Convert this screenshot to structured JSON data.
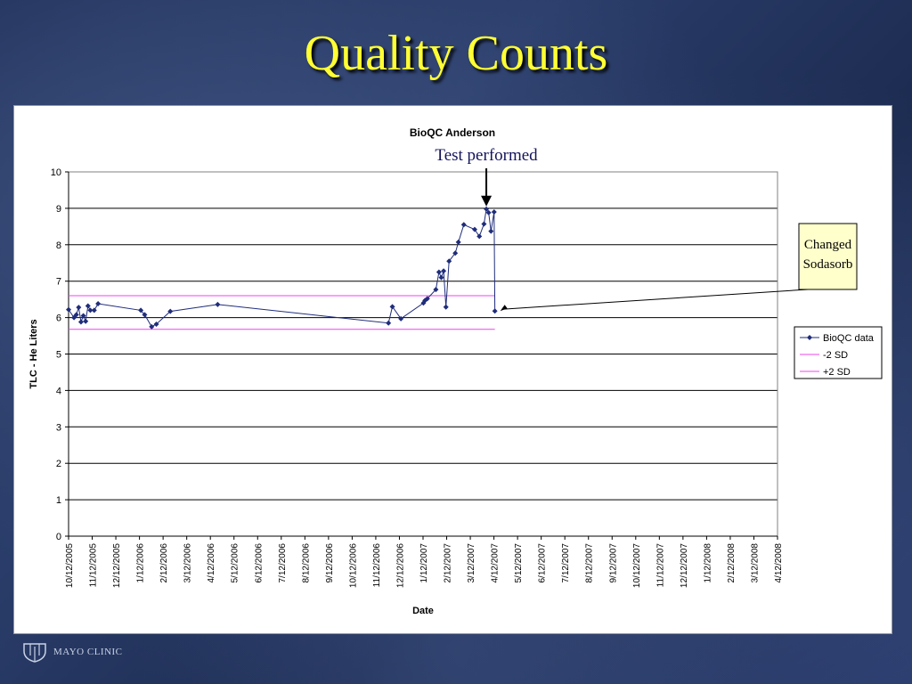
{
  "slide": {
    "title": "Quality Counts",
    "logo_text": "MAYO CLINIC"
  },
  "chart_data": {
    "type": "line",
    "title": "BioQC Anderson",
    "xlabel": "Date",
    "ylabel": "TLC - He Liters",
    "ylim": [
      0,
      10
    ],
    "yticks": [
      0,
      1,
      2,
      3,
      4,
      5,
      6,
      7,
      8,
      9,
      10
    ],
    "x_tick_labels": [
      "10/12/2005",
      "11/12/2005",
      "12/12/2005",
      "1/12/2006",
      "2/12/2006",
      "3/12/2006",
      "4/12/2006",
      "5/12/2006",
      "6/12/2006",
      "7/12/2006",
      "8/12/2006",
      "9/12/2006",
      "10/12/2006",
      "11/12/2006",
      "12/12/2006",
      "1/12/2007",
      "2/12/2007",
      "3/12/2007",
      "4/12/2007",
      "5/12/2007",
      "6/12/2007",
      "7/12/2007",
      "8/12/2007",
      "9/12/2007",
      "10/12/2007",
      "11/12/2007",
      "12/12/2007",
      "1/12/2008",
      "2/12/2008",
      "3/12/2008",
      "4/12/2008"
    ],
    "grid": true,
    "legend_position": "right",
    "series": [
      {
        "name": "BioQC data",
        "color": "#1f2d7a",
        "marker": "diamond",
        "points": [
          [
            "2005-10-12",
            6.22
          ],
          [
            "2005-10-19",
            6.0
          ],
          [
            "2005-10-22",
            6.08
          ],
          [
            "2005-10-25",
            6.28
          ],
          [
            "2005-10-28",
            5.88
          ],
          [
            "2005-10-31",
            6.05
          ],
          [
            "2005-11-03",
            5.9
          ],
          [
            "2005-11-06",
            6.32
          ],
          [
            "2005-11-09",
            6.2
          ],
          [
            "2005-11-14",
            6.2
          ],
          [
            "2005-11-19",
            6.38
          ],
          [
            "2006-01-13",
            6.2
          ],
          [
            "2006-01-18",
            6.08
          ],
          [
            "2006-01-27",
            5.75
          ],
          [
            "2006-02-02",
            5.82
          ],
          [
            "2006-02-20",
            6.17
          ],
          [
            "2006-04-22",
            6.36
          ],
          [
            "2006-11-28",
            5.85
          ],
          [
            "2006-12-03",
            6.3
          ],
          [
            "2006-12-14",
            5.97
          ],
          [
            "2007-01-12",
            6.4
          ],
          [
            "2007-01-14",
            6.47
          ],
          [
            "2007-01-17",
            6.52
          ],
          [
            "2007-01-28",
            6.77
          ],
          [
            "2007-02-01",
            7.25
          ],
          [
            "2007-02-04",
            7.1
          ],
          [
            "2007-02-07",
            7.28
          ],
          [
            "2007-02-10",
            6.29
          ],
          [
            "2007-02-14",
            7.55
          ],
          [
            "2007-02-22",
            7.77
          ],
          [
            "2007-02-26",
            8.07
          ],
          [
            "2007-03-05",
            8.55
          ],
          [
            "2007-03-19",
            8.42
          ],
          [
            "2007-03-25",
            8.23
          ],
          [
            "2007-03-31",
            8.57
          ],
          [
            "2007-04-03",
            8.98
          ],
          [
            "2007-04-06",
            8.88
          ],
          [
            "2007-04-09",
            8.37
          ],
          [
            "2007-04-13",
            8.9
          ],
          [
            "2007-04-14",
            6.18
          ]
        ]
      },
      {
        "name": "-2 SD",
        "color": "#ee44ee",
        "value": 5.68,
        "x_range": [
          "2005-10-12",
          "2007-04-14"
        ]
      },
      {
        "name": "+2 SD",
        "color": "#ee44ee",
        "value": 6.6,
        "x_range": [
          "2005-10-12",
          "2007-04-14"
        ]
      }
    ],
    "annotations": [
      {
        "text": "Test performed",
        "target": [
          "2007-04-03",
          8.98
        ]
      },
      {
        "text_lines": [
          "Changed",
          "Sodasorb"
        ],
        "target": [
          "2007-04-14",
          6.18
        ],
        "box_color": "#ffffcc"
      }
    ]
  }
}
